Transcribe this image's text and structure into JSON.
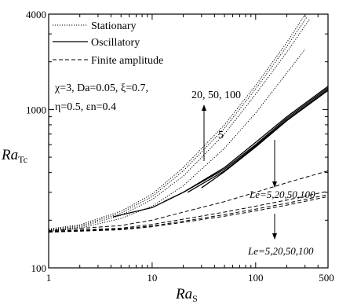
{
  "chart_data": {
    "type": "line",
    "xscale": "log",
    "yscale": "log",
    "xlim": [
      1,
      500
    ],
    "ylim": [
      100,
      4000
    ],
    "xlabel_main": "Ra",
    "xlabel_sub": "S",
    "ylabel_main": "Ra",
    "ylabel_sub": "Tc",
    "x_ticks": [
      "1",
      "10",
      "100",
      "500"
    ],
    "y_ticks": [
      "100",
      "1000",
      "4000"
    ],
    "legend": [
      {
        "label": "Stationary",
        "style": "dotted"
      },
      {
        "label": "Oscillatory",
        "style": "solid"
      },
      {
        "label": "Finite amplitude",
        "style": "dashed"
      }
    ],
    "params_line1": "χ=3, Da=0.05, ξ=0.7,",
    "params_line2": "η=0.5, εn=0.4",
    "annotations": {
      "stationary_le": "20, 50, 100",
      "stationary_le5": "5",
      "oscillatory_le": "Le=5,20,50,100",
      "finite_le": "Le=5,20,50,100"
    },
    "series": [
      {
        "kind": "stationary",
        "le": 5,
        "x": [
          1,
          2,
          5,
          10,
          20,
          50,
          100,
          200,
          300
        ],
        "y": [
          170,
          178,
          205,
          245,
          330,
          570,
          950,
          1700,
          2400
        ]
      },
      {
        "kind": "stationary",
        "le": 20,
        "x": [
          1,
          2,
          5,
          10,
          20,
          50,
          100,
          200,
          330
        ],
        "y": [
          172,
          181,
          215,
          270,
          380,
          700,
          1250,
          2300,
          3700
        ]
      },
      {
        "kind": "stationary",
        "le": 50,
        "x": [
          1,
          2,
          5,
          10,
          20,
          50,
          100,
          200,
          310
        ],
        "y": [
          174,
          184,
          222,
          282,
          410,
          760,
          1350,
          2500,
          3800
        ]
      },
      {
        "kind": "stationary",
        "le": 100,
        "x": [
          1,
          2,
          5,
          10,
          20,
          50,
          100,
          200,
          290
        ],
        "y": [
          176,
          187,
          228,
          292,
          430,
          800,
          1420,
          2650,
          3850
        ]
      },
      {
        "kind": "oscillatory",
        "le": 5,
        "x": [
          4.2,
          10,
          20,
          50,
          100,
          200,
          500
        ],
        "y": [
          210,
          240,
          300,
          430,
          620,
          900,
          1400
        ]
      },
      {
        "kind": "oscillatory",
        "le": 20,
        "x": [
          13,
          20,
          50,
          100,
          200,
          500
        ],
        "y": [
          262,
          300,
          420,
          600,
          880,
          1370
        ]
      },
      {
        "kind": "oscillatory",
        "le": 50,
        "x": [
          22,
          50,
          100,
          200,
          500
        ],
        "y": [
          300,
          410,
          590,
          860,
          1340
        ]
      },
      {
        "kind": "oscillatory",
        "le": 100,
        "x": [
          30,
          50,
          100,
          200,
          500
        ],
        "y": [
          320,
          405,
          580,
          850,
          1320
        ]
      },
      {
        "kind": "finite",
        "le": 5,
        "x": [
          1,
          5,
          10,
          20,
          50,
          100,
          200,
          500
        ],
        "y": [
          172,
          185,
          200,
          225,
          262,
          300,
          345,
          410
        ]
      },
      {
        "kind": "finite",
        "le": 20,
        "x": [
          1,
          5,
          10,
          20,
          50,
          100,
          200,
          500
        ],
        "y": [
          170,
          178,
          188,
          203,
          225,
          245,
          268,
          305
        ]
      },
      {
        "kind": "finite",
        "le": 50,
        "x": [
          1,
          5,
          10,
          20,
          50,
          100,
          200,
          500
        ],
        "y": [
          169,
          176,
          184,
          197,
          217,
          235,
          256,
          290
        ]
      },
      {
        "kind": "finite",
        "le": 100,
        "x": [
          1,
          5,
          10,
          20,
          50,
          100,
          200,
          500
        ],
        "y": [
          168,
          174,
          182,
          194,
          212,
          229,
          249,
          282
        ]
      }
    ]
  }
}
